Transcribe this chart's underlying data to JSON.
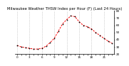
{
  "title": "Milwaukee Weather THSW Index per Hour (F) (Last 24 Hours)",
  "hours": [
    0,
    1,
    2,
    3,
    4,
    5,
    6,
    7,
    8,
    9,
    10,
    11,
    12,
    13,
    14,
    15,
    16,
    17,
    18,
    19,
    20,
    21,
    22,
    23
  ],
  "values": [
    32,
    30,
    29,
    28,
    27,
    27,
    28,
    31,
    36,
    42,
    52,
    62,
    68,
    73,
    72,
    65,
    60,
    58,
    55,
    50,
    46,
    42,
    38,
    35
  ],
  "line_color": "#ff0000",
  "marker_color": "#000000",
  "background_color": "#ffffff",
  "grid_color": "#aaaaaa",
  "ylim_min": 20,
  "ylim_max": 80,
  "ylabel_right_ticks": [
    20,
    30,
    40,
    50,
    60,
    70,
    80
  ],
  "title_fontsize": 3.8,
  "tick_fontsize": 3.0,
  "grid_xticks": [
    0,
    3,
    6,
    9,
    12,
    15,
    18,
    21
  ]
}
